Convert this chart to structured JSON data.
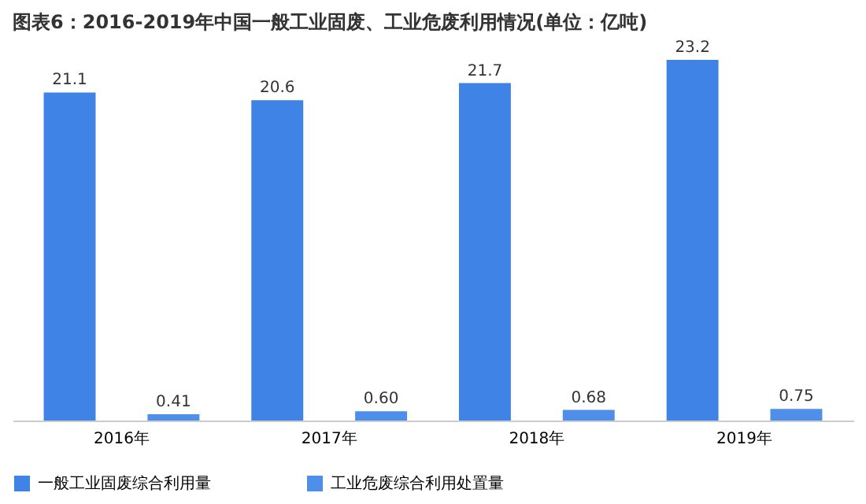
{
  "chart_data": {
    "type": "bar",
    "title": "图表6：2016-2019年中国一般工业固废、工业危废利用情况(单位：亿吨)",
    "categories": [
      "2016年",
      "2017年",
      "2018年",
      "2019年"
    ],
    "series": [
      {
        "name": "一般工业固废综合利用量",
        "color": "#3f83e6",
        "values": [
          21.1,
          20.6,
          21.7,
          23.2
        ],
        "value_labels": [
          "21.1",
          "20.6",
          "21.7",
          "23.2"
        ]
      },
      {
        "name": "工业危废综合利用处置量",
        "color": "#4f8fea",
        "values": [
          0.41,
          0.6,
          0.68,
          0.75
        ],
        "value_labels": [
          "0.41",
          "0.60",
          "0.68",
          "0.75"
        ]
      }
    ],
    "legend": "bottom",
    "grid": false
  }
}
